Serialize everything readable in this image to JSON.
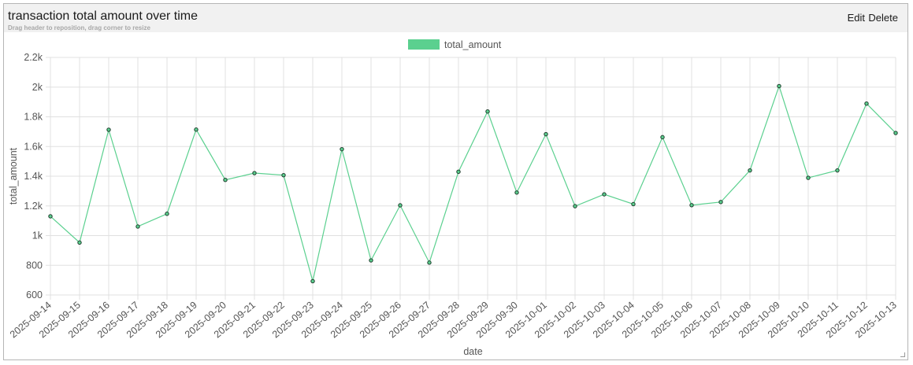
{
  "panel": {
    "title": "transaction total amount over time",
    "hint": "Drag header to reposition, drag corner to resize",
    "edit_label": "Edit",
    "delete_label": "Delete"
  },
  "chart_data": {
    "type": "line",
    "title": "transaction total amount over time",
    "xlabel": "date",
    "ylabel": "total_amount",
    "ylim": [
      600,
      2200
    ],
    "yticks": [
      600,
      800,
      1000,
      1200,
      1400,
      1600,
      1800,
      2000,
      2200
    ],
    "ytick_labels": [
      "600",
      "800",
      "1k",
      "1.2k",
      "1.4k",
      "1.6k",
      "1.8k",
      "2k",
      "2.2k"
    ],
    "grid": true,
    "legend_position": "top",
    "colors": {
      "line": "#5bd08f",
      "point_stroke": "#1f3b2c",
      "grid": "#e0e0e0"
    },
    "categories": [
      "2025-09-14",
      "2025-09-15",
      "2025-09-16",
      "2025-09-17",
      "2025-09-18",
      "2025-09-19",
      "2025-09-20",
      "2025-09-21",
      "2025-09-22",
      "2025-09-23",
      "2025-09-24",
      "2025-09-25",
      "2025-09-26",
      "2025-09-27",
      "2025-09-28",
      "2025-09-29",
      "2025-09-30",
      "2025-10-01",
      "2025-10-02",
      "2025-10-03",
      "2025-10-04",
      "2025-10-05",
      "2025-10-06",
      "2025-10-07",
      "2025-10-08",
      "2025-10-09",
      "2025-10-10",
      "2025-10-11",
      "2025-10-12",
      "2025-10-13"
    ],
    "series": [
      {
        "name": "total_amount",
        "values": [
          1130,
          953,
          1713,
          1061,
          1147,
          1714,
          1375,
          1421,
          1407,
          693,
          1582,
          833,
          1204,
          818,
          1430,
          1836,
          1290,
          1683,
          1198,
          1278,
          1212,
          1663,
          1205,
          1226,
          1439,
          2007,
          1389,
          1439,
          1889,
          1691
        ]
      }
    ]
  }
}
